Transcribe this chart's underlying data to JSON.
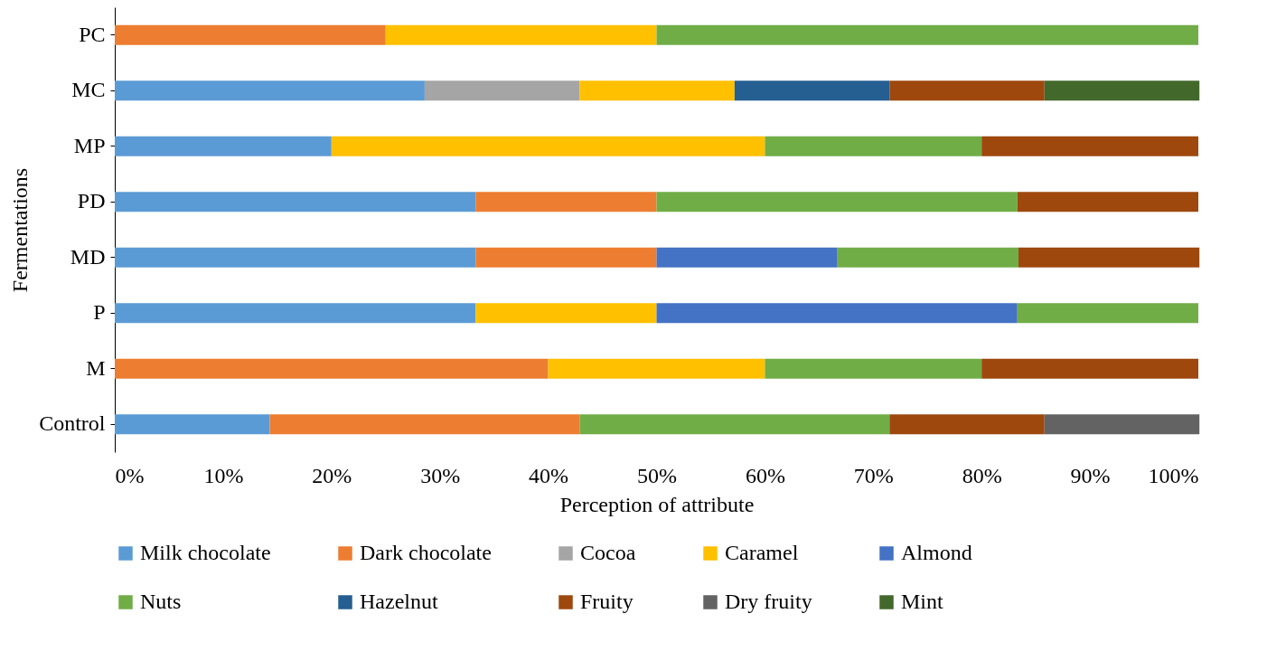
{
  "chart_data": {
    "type": "bar",
    "orientation": "horizontal",
    "stacked": true,
    "xlabel": "Perception of attribute",
    "ylabel": "Fermentations",
    "categories": [
      "PC",
      "MC",
      "MP",
      "PD",
      "MD",
      "P",
      "M",
      "Control"
    ],
    "series": [
      {
        "name": "Milk chocolate",
        "color": "#5b9bd5",
        "values": [
          null,
          28.6,
          20,
          33.3,
          33.3,
          33.3,
          null,
          14.3
        ]
      },
      {
        "name": "Dark chocolate",
        "color": "#ed7d31",
        "values": [
          25,
          null,
          null,
          16.7,
          16.7,
          null,
          40,
          28.6
        ]
      },
      {
        "name": "Cocoa",
        "color": "#a5a5a5",
        "values": [
          null,
          14.3,
          null,
          null,
          null,
          null,
          null,
          null
        ]
      },
      {
        "name": "Caramel",
        "color": "#ffc000",
        "values": [
          25,
          14.3,
          40,
          null,
          null,
          16.7,
          20,
          null
        ]
      },
      {
        "name": "Almond",
        "color": "#4472c4",
        "values": [
          null,
          null,
          null,
          null,
          16.7,
          33.3,
          null,
          null
        ]
      },
      {
        "name": "Nuts",
        "color": "#70ad47",
        "values": [
          50,
          null,
          20,
          33.3,
          16.7,
          16.7,
          20,
          28.6
        ]
      },
      {
        "name": "Hazelnut",
        "color": "#255e91",
        "values": [
          null,
          14.3,
          null,
          null,
          null,
          null,
          null,
          null
        ]
      },
      {
        "name": "Fruity",
        "color": "#9e480e",
        "values": [
          null,
          14.3,
          20,
          16.7,
          16.7,
          null,
          20,
          14.3
        ]
      },
      {
        "name": "Dry fruity",
        "color": "#636363",
        "values": [
          null,
          null,
          null,
          null,
          null,
          null,
          null,
          14.3
        ]
      },
      {
        "name": "Mint",
        "color": "#43682b",
        "values": [
          null,
          14.3,
          null,
          null,
          null,
          null,
          null,
          null
        ]
      }
    ],
    "xlim": [
      0,
      100
    ],
    "xticks": [
      {
        "value": 0,
        "label": "0%"
      },
      {
        "value": 10,
        "label": "10%"
      },
      {
        "value": 20,
        "label": "20%"
      },
      {
        "value": 30,
        "label": "30%"
      },
      {
        "value": 40,
        "label": "40%"
      },
      {
        "value": 50,
        "label": "50%"
      },
      {
        "value": 60,
        "label": "60%"
      },
      {
        "value": 70,
        "label": "70%"
      },
      {
        "value": 80,
        "label": "80%"
      },
      {
        "value": 90,
        "label": "90%"
      },
      {
        "value": 100,
        "label": "100%"
      }
    ],
    "legend": "bottom",
    "grid": false
  }
}
